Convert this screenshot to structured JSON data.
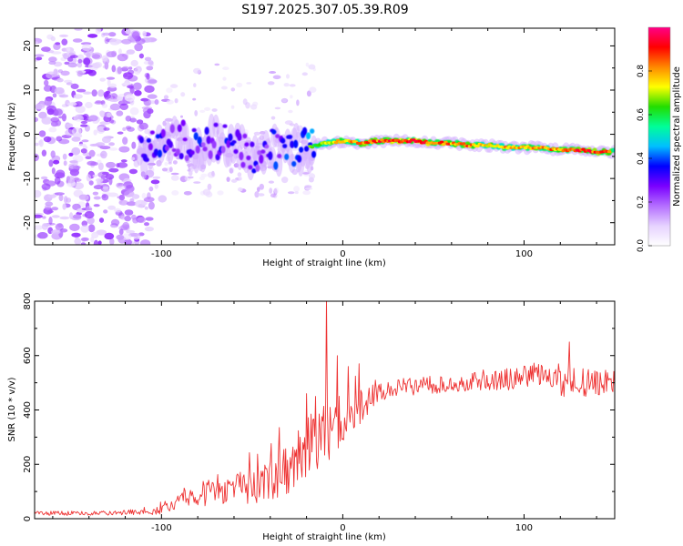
{
  "title": "S197.2025.307.05.39.R09",
  "chart_data": [
    {
      "type": "heatmap",
      "name": "spectrogram",
      "xlabel": "Height of straight line (km)",
      "ylabel": "Frequency (Hz)",
      "xlim": [
        -170,
        150
      ],
      "ylim": [
        -25,
        24
      ],
      "xticks": [
        -100,
        0,
        100
      ],
      "yticks": [
        -20,
        -10,
        0,
        10,
        20
      ],
      "colorbar": {
        "label": "Normalized spectral amplitude",
        "range": [
          0,
          1
        ],
        "ticks": [
          0.0,
          0.2,
          0.4,
          0.6,
          0.8
        ],
        "tick_labels": [
          "0.0",
          "0.2",
          "0.4",
          "0.6",
          "0.8"
        ],
        "colors": [
          "#ffffff",
          "#e6d2ff",
          "#b46eff",
          "#7a00ff",
          "#0000ff",
          "#00bfff",
          "#00ff99",
          "#22dd00",
          "#ffff00",
          "#ff8800",
          "#ff0000",
          "#ff0088"
        ]
      },
      "ridge": {
        "x": [
          -110,
          -100,
          -90,
          -80,
          -70,
          -60,
          -50,
          -40,
          -30,
          -20,
          -10,
          0,
          10,
          20,
          30,
          40,
          50,
          60,
          70,
          80,
          90,
          100,
          110,
          120,
          130,
          140,
          150
        ],
        "freq": [
          -4,
          -2.5,
          -1,
          -3,
          -1.5,
          -2,
          -5,
          -3,
          -4,
          -3,
          -2,
          -1.5,
          -2,
          -1.5,
          -1.5,
          -1.5,
          -2,
          -2,
          -2.5,
          -2.5,
          -3,
          -3,
          -3,
          -3.5,
          -3.5,
          -4,
          -4
        ],
        "amp": [
          0.45,
          0.5,
          0.45,
          0.5,
          0.45,
          0.5,
          0.45,
          0.5,
          0.55,
          0.65,
          0.75,
          0.8,
          0.85,
          0.9,
          0.95,
          0.95,
          0.9,
          0.85,
          0.85,
          0.8,
          0.8,
          0.8,
          0.85,
          0.85,
          0.95,
          0.9,
          0.85
        ]
      }
    },
    {
      "type": "line",
      "name": "snr",
      "xlabel": "Height of straight line (km)",
      "ylabel": "SNR (10 * v/v)",
      "xlim": [
        -170,
        150
      ],
      "ylim": [
        0,
        800
      ],
      "xticks": [
        -100,
        0,
        100
      ],
      "yticks": [
        0,
        200,
        400,
        600,
        800
      ],
      "color": "#ee3333",
      "series": [
        {
          "name": "SNR",
          "x": [
            -170,
            -140,
            -110,
            -100,
            -90,
            -80,
            -70,
            -60,
            -50,
            -40,
            -30,
            -20,
            -15,
            -10,
            -5,
            0,
            10,
            20,
            30,
            40,
            60,
            80,
            100,
            110,
            120,
            130,
            140,
            150
          ],
          "mean": [
            20,
            20,
            25,
            30,
            60,
            90,
            100,
            110,
            120,
            140,
            180,
            250,
            300,
            320,
            340,
            350,
            410,
            460,
            480,
            490,
            500,
            510,
            520,
            530,
            510,
            500,
            500,
            500
          ],
          "noise": [
            8,
            8,
            10,
            15,
            30,
            45,
            50,
            55,
            65,
            75,
            90,
            120,
            140,
            130,
            100,
            80,
            60,
            40,
            35,
            35,
            35,
            40,
            45,
            50,
            60,
            60,
            50,
            45
          ]
        }
      ],
      "peaks": [
        {
          "x": -9,
          "y": 810
        },
        {
          "x": -3,
          "y": 600
        },
        {
          "x": 3,
          "y": 560
        },
        {
          "x": 9,
          "y": 570
        },
        {
          "x": -20,
          "y": 460
        },
        {
          "x": -15,
          "y": 450
        },
        {
          "x": 125,
          "y": 650
        }
      ]
    }
  ]
}
